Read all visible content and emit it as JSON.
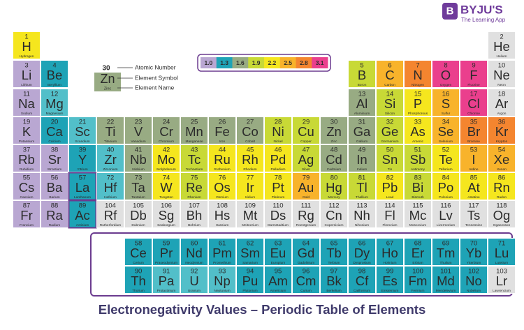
{
  "logo": {
    "mark": "B",
    "brand": "BYJU'S",
    "tagline": "The Learning App"
  },
  "key": {
    "number": 30,
    "symbol": "Zn",
    "name": "Zinc",
    "color": "#98ab83",
    "labels": [
      "Atomic Number",
      "Element Symbol",
      "Element Name"
    ]
  },
  "scale": [
    {
      "value": 1.0,
      "label": "1.0",
      "color": "#b9a7d2"
    },
    {
      "value": 1.3,
      "label": "1.3",
      "color": "#1ea3b6"
    },
    {
      "value": 1.6,
      "label": "1.6",
      "color": "#98ab83"
    },
    {
      "value": 1.9,
      "label": "1.9",
      "color": "#c8d936"
    },
    {
      "value": 2.2,
      "label": "2.2",
      "color": "#f5e61e"
    },
    {
      "value": 2.5,
      "label": "2.5",
      "color": "#f8b32b"
    },
    {
      "value": 2.8,
      "label": "2.8",
      "color": "#f4852f"
    },
    {
      "value": 3.1,
      "label": "3.1",
      "color": "#ea3f8d"
    }
  ],
  "elements": [
    {
      "number": 1,
      "symbol": "H",
      "name": "Hydrogen",
      "color": "#f5e61e"
    },
    {
      "number": 2,
      "symbol": "He",
      "name": "Helium",
      "color": "#e0e0e0"
    },
    {
      "number": 3,
      "symbol": "Li",
      "name": "Lithium",
      "color": "#b9a7d2"
    },
    {
      "number": 4,
      "symbol": "Be",
      "name": "Beryllium",
      "color": "#1ea3b6"
    },
    {
      "number": 5,
      "symbol": "B",
      "name": "Boron",
      "color": "#c8d936"
    },
    {
      "number": 6,
      "symbol": "C",
      "name": "Carbon",
      "color": "#f8b32b"
    },
    {
      "number": 7,
      "symbol": "N",
      "name": "Nitrogen",
      "color": "#f4852f"
    },
    {
      "number": 8,
      "symbol": "O",
      "name": "Oxygen",
      "color": "#ea3f8d"
    },
    {
      "number": 9,
      "symbol": "F",
      "name": "Fluorine",
      "color": "#ea3f8d"
    },
    {
      "number": 10,
      "symbol": "Ne",
      "name": "Neon",
      "color": "#e0e0e0"
    },
    {
      "number": 11,
      "symbol": "Na",
      "name": "Sodium",
      "color": "#b9a7d2"
    },
    {
      "number": 12,
      "symbol": "Mg",
      "name": "Magnesium",
      "color": "#52bfc9"
    },
    {
      "number": 13,
      "symbol": "Al",
      "name": "Aluminium",
      "color": "#98ab83"
    },
    {
      "number": 14,
      "symbol": "Si",
      "name": "Silicon",
      "color": "#c8d936"
    },
    {
      "number": 15,
      "symbol": "P",
      "name": "Phosphorous",
      "color": "#f5e61e"
    },
    {
      "number": 16,
      "symbol": "S",
      "name": "Sulfur",
      "color": "#f8b32b"
    },
    {
      "number": 17,
      "symbol": "Cl",
      "name": "Chlorine",
      "color": "#ea3f8d"
    },
    {
      "number": 18,
      "symbol": "Ar",
      "name": "Argon",
      "color": "#e0e0e0"
    },
    {
      "number": 19,
      "symbol": "K",
      "name": "Potassium",
      "color": "#b9a7d2"
    },
    {
      "number": 20,
      "symbol": "Ca",
      "name": "Calcium",
      "color": "#1ea3b6"
    },
    {
      "number": 21,
      "symbol": "Sc",
      "name": "Scandium",
      "color": "#52bfc9"
    },
    {
      "number": 22,
      "symbol": "Ti",
      "name": "Titanium",
      "color": "#98ab83"
    },
    {
      "number": 23,
      "symbol": "V",
      "name": "Vanadium",
      "color": "#98ab83"
    },
    {
      "number": 24,
      "symbol": "Cr",
      "name": "Chromium",
      "color": "#98ab83"
    },
    {
      "number": 25,
      "symbol": "Mn",
      "name": "Manganese",
      "color": "#98ab83"
    },
    {
      "number": 26,
      "symbol": "Fe",
      "name": "Iron",
      "color": "#98ab83"
    },
    {
      "number": 27,
      "symbol": "Co",
      "name": "Cobalt",
      "color": "#98ab83"
    },
    {
      "number": 28,
      "symbol": "Ni",
      "name": "Nickel",
      "color": "#c8d936"
    },
    {
      "number": 29,
      "symbol": "Cu",
      "name": "Copper",
      "color": "#c8d936"
    },
    {
      "number": 30,
      "symbol": "Zn",
      "name": "Zinc",
      "color": "#98ab83"
    },
    {
      "number": 31,
      "symbol": "Ga",
      "name": "Gallium",
      "color": "#98ab83"
    },
    {
      "number": 32,
      "symbol": "Ge",
      "name": "Germanium",
      "color": "#c8d936"
    },
    {
      "number": 33,
      "symbol": "As",
      "name": "Arsenic",
      "color": "#f5e61e"
    },
    {
      "number": 34,
      "symbol": "Se",
      "name": "Selenium",
      "color": "#f8b32b"
    },
    {
      "number": 35,
      "symbol": "Br",
      "name": "Bromine",
      "color": "#f4852f"
    },
    {
      "number": 36,
      "symbol": "Kr",
      "name": "Krypton",
      "color": "#f4852f"
    },
    {
      "number": 37,
      "symbol": "Rb",
      "name": "Rubidium",
      "color": "#b9a7d2"
    },
    {
      "number": 38,
      "symbol": "Sr",
      "name": "Strontium",
      "color": "#b9a7d2"
    },
    {
      "number": 39,
      "symbol": "Y",
      "name": "Yttrium",
      "color": "#1ea3b6"
    },
    {
      "number": 40,
      "symbol": "Zr",
      "name": "Zirconium",
      "color": "#52bfc9"
    },
    {
      "number": 41,
      "symbol": "Nb",
      "name": "Niobium",
      "color": "#98ab83"
    },
    {
      "number": 42,
      "symbol": "Mo",
      "name": "Molybdenum",
      "color": "#f5e61e"
    },
    {
      "number": 43,
      "symbol": "Tc",
      "name": "Technetium",
      "color": "#c8d936"
    },
    {
      "number": 44,
      "symbol": "Ru",
      "name": "Ruthenium",
      "color": "#f5e61e"
    },
    {
      "number": 45,
      "symbol": "Rh",
      "name": "Rhodium",
      "color": "#f5e61e"
    },
    {
      "number": 46,
      "symbol": "Pd",
      "name": "Palladium",
      "color": "#f5e61e"
    },
    {
      "number": 47,
      "symbol": "Ag",
      "name": "Silver",
      "color": "#c8d936"
    },
    {
      "number": 48,
      "symbol": "Cd",
      "name": "Cadmium",
      "color": "#98ab83"
    },
    {
      "number": 49,
      "symbol": "In",
      "name": "Indium",
      "color": "#98ab83"
    },
    {
      "number": 50,
      "symbol": "Sn",
      "name": "Tin",
      "color": "#c8d936"
    },
    {
      "number": 51,
      "symbol": "Sb",
      "name": "Antimony",
      "color": "#c8d936"
    },
    {
      "number": 52,
      "symbol": "Te",
      "name": "Tellurium",
      "color": "#f5e61e"
    },
    {
      "number": 53,
      "symbol": "I",
      "name": "Iodine",
      "color": "#f8b32b"
    },
    {
      "number": 54,
      "symbol": "Xe",
      "name": "Xenon",
      "color": "#f8b32b"
    },
    {
      "number": 55,
      "symbol": "Cs",
      "name": "Caesium",
      "color": "#b9a7d2"
    },
    {
      "number": 56,
      "symbol": "Ba",
      "name": "Barium",
      "color": "#b9a7d2"
    },
    {
      "number": 57,
      "symbol": "La",
      "name": "Lanthanum",
      "color": "#1ea3b6"
    },
    {
      "number": 58,
      "symbol": "Ce",
      "name": "Cerium",
      "color": "#1ea3b6"
    },
    {
      "number": 59,
      "symbol": "Pr",
      "name": "Praseodymium",
      "color": "#1ea3b6"
    },
    {
      "number": 60,
      "symbol": "Nd",
      "name": "Neodymium",
      "color": "#1ea3b6"
    },
    {
      "number": 61,
      "symbol": "Pm",
      "name": "Promethium",
      "color": "#1ea3b6"
    },
    {
      "number": 62,
      "symbol": "Sm",
      "name": "Samarium",
      "color": "#1ea3b6"
    },
    {
      "number": 63,
      "symbol": "Eu",
      "name": "Europium",
      "color": "#1ea3b6"
    },
    {
      "number": 64,
      "symbol": "Gd",
      "name": "Gadolinium",
      "color": "#1ea3b6"
    },
    {
      "number": 65,
      "symbol": "Tb",
      "name": "Terbium",
      "color": "#1ea3b6"
    },
    {
      "number": 66,
      "symbol": "Dy",
      "name": "Dysprosium",
      "color": "#1ea3b6"
    },
    {
      "number": 67,
      "symbol": "Ho",
      "name": "Holmium",
      "color": "#1ea3b6"
    },
    {
      "number": 68,
      "symbol": "Er",
      "name": "Erbium",
      "color": "#1ea3b6"
    },
    {
      "number": 69,
      "symbol": "Tm",
      "name": "Thulium",
      "color": "#1ea3b6"
    },
    {
      "number": 70,
      "symbol": "Yb",
      "name": "Ytterbium",
      "color": "#1ea3b6"
    },
    {
      "number": 71,
      "symbol": "Lu",
      "name": "Lutetium",
      "color": "#1ea3b6"
    },
    {
      "number": 72,
      "symbol": "Hf",
      "name": "Hafnium",
      "color": "#52bfc9"
    },
    {
      "number": 73,
      "symbol": "Ta",
      "name": "Tantalum",
      "color": "#98ab83"
    },
    {
      "number": 74,
      "symbol": "W",
      "name": "Tungsten",
      "color": "#f5e61e"
    },
    {
      "number": 75,
      "symbol": "Re",
      "name": "Rhenium",
      "color": "#c8d936"
    },
    {
      "number": 76,
      "symbol": "Os",
      "name": "Osmium",
      "color": "#f5e61e"
    },
    {
      "number": 77,
      "symbol": "Ir",
      "name": "Iridium",
      "color": "#f5e61e"
    },
    {
      "number": 78,
      "symbol": "Pt",
      "name": "Platinum",
      "color": "#f5e61e"
    },
    {
      "number": 79,
      "symbol": "Au",
      "name": "Gold",
      "color": "#f8b32b"
    },
    {
      "number": 80,
      "symbol": "Hg",
      "name": "Mercury",
      "color": "#c8d936"
    },
    {
      "number": 81,
      "symbol": "Tl",
      "name": "Thallium",
      "color": "#c8d936"
    },
    {
      "number": 82,
      "symbol": "Pb",
      "name": "Lead",
      "color": "#f5e61e"
    },
    {
      "number": 83,
      "symbol": "Bi",
      "name": "Bismuth",
      "color": "#c8d936"
    },
    {
      "number": 84,
      "symbol": "Po",
      "name": "Polonium",
      "color": "#f5e61e"
    },
    {
      "number": 85,
      "symbol": "At",
      "name": "Astatine",
      "color": "#f5e61e"
    },
    {
      "number": 86,
      "symbol": "Rn",
      "name": "Radon",
      "color": "#f5e61e"
    },
    {
      "number": 87,
      "symbol": "Fr",
      "name": "Francium",
      "color": "#b9a7d2"
    },
    {
      "number": 88,
      "symbol": "Ra",
      "name": "Radium",
      "color": "#b9a7d2"
    },
    {
      "number": 89,
      "symbol": "Ac",
      "name": "Actinium",
      "color": "#1ea3b6"
    },
    {
      "number": 90,
      "symbol": "Th",
      "name": "Thorium",
      "color": "#1ea3b6"
    },
    {
      "number": 91,
      "symbol": "Pa",
      "name": "Protactinium",
      "color": "#52bfc9"
    },
    {
      "number": 92,
      "symbol": "U",
      "name": "Uranium",
      "color": "#52bfc9"
    },
    {
      "number": 93,
      "symbol": "Np",
      "name": "Neptunium",
      "color": "#52bfc9"
    },
    {
      "number": 94,
      "symbol": "Pu",
      "name": "Plutonium",
      "color": "#1ea3b6"
    },
    {
      "number": 95,
      "symbol": "Am",
      "name": "Americium",
      "color": "#1ea3b6"
    },
    {
      "number": 96,
      "symbol": "Cm",
      "name": "Curium",
      "color": "#1ea3b6"
    },
    {
      "number": 97,
      "symbol": "Bk",
      "name": "Berkelium",
      "color": "#1ea3b6"
    },
    {
      "number": 98,
      "symbol": "Cf",
      "name": "Californium",
      "color": "#1ea3b6"
    },
    {
      "number": 99,
      "symbol": "Es",
      "name": "Einsteinium",
      "color": "#1ea3b6"
    },
    {
      "number": 100,
      "symbol": "Fm",
      "name": "Fermium",
      "color": "#1ea3b6"
    },
    {
      "number": 101,
      "symbol": "Md",
      "name": "Mendelevium",
      "color": "#1ea3b6"
    },
    {
      "number": 102,
      "symbol": "No",
      "name": "Nobelium",
      "color": "#1ea3b6"
    },
    {
      "number": 103,
      "symbol": "Lr",
      "name": "Lawrencium",
      "color": "#e0e0e0"
    },
    {
      "number": 104,
      "symbol": "Rf",
      "name": "Rutherfordium",
      "color": "#e0e0e0"
    },
    {
      "number": 105,
      "symbol": "Db",
      "name": "Dubnium",
      "color": "#e0e0e0"
    },
    {
      "number": 106,
      "symbol": "Sg",
      "name": "Seaborgium",
      "color": "#e0e0e0"
    },
    {
      "number": 107,
      "symbol": "Bh",
      "name": "Bohrium",
      "color": "#e0e0e0"
    },
    {
      "number": 108,
      "symbol": "Hs",
      "name": "Hassium",
      "color": "#e0e0e0"
    },
    {
      "number": 109,
      "symbol": "Mt",
      "name": "Meitnerium",
      "color": "#e0e0e0"
    },
    {
      "number": 110,
      "symbol": "Ds",
      "name": "Darmstadtium",
      "color": "#e0e0e0"
    },
    {
      "number": 111,
      "symbol": "Rg",
      "name": "Roentgenium",
      "color": "#e0e0e0"
    },
    {
      "number": 112,
      "symbol": "Cn",
      "name": "Copernicium",
      "color": "#e0e0e0"
    },
    {
      "number": 113,
      "symbol": "Nh",
      "name": "Nihonium",
      "color": "#e0e0e0"
    },
    {
      "number": 114,
      "symbol": "Fl",
      "name": "Flerovium",
      "color": "#e0e0e0"
    },
    {
      "number": 115,
      "symbol": "Mc",
      "name": "Moscovium",
      "color": "#e0e0e0"
    },
    {
      "number": 116,
      "symbol": "Lv",
      "name": "Livermorium",
      "color": "#e0e0e0"
    },
    {
      "number": 117,
      "symbol": "Ts",
      "name": "Tennessine",
      "color": "#e0e0e0"
    },
    {
      "number": 118,
      "symbol": "Og",
      "name": "Oganesson",
      "color": "#e0e0e0"
    }
  ],
  "title": "Electronegativity Values – Periodic Table of Elements"
}
